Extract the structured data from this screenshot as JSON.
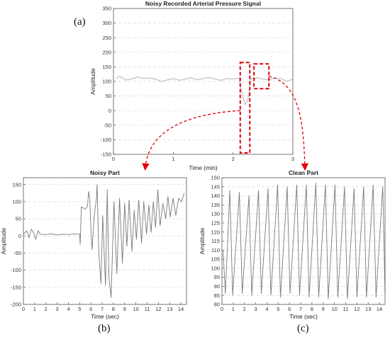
{
  "panel_labels": [
    "(a)",
    "(b)",
    "(c)"
  ],
  "chart_data": [
    {
      "type": "line",
      "title": "Noisy Recorded Arterial Pressure Signal",
      "xlabel": "Time (min)",
      "ylabel": "Amplitude",
      "xlim": [
        0,
        3
      ],
      "ylim": [
        -150,
        350
      ],
      "xticks": [
        0,
        1,
        2,
        3
      ],
      "yticks": [
        -150,
        -100,
        -50,
        0,
        50,
        100,
        150,
        200,
        250,
        300,
        350
      ],
      "grid": true,
      "color": "#c8c8c8",
      "series": [
        {
          "x": [
            0.05,
            0.1,
            0.15,
            0.2,
            0.3,
            0.4,
            0.5,
            0.6,
            0.7,
            0.8,
            0.9,
            1.0,
            1.1,
            1.2,
            1.3,
            1.4,
            1.5,
            1.6,
            1.7,
            1.8,
            1.9,
            2.0,
            2.1,
            2.15,
            2.2,
            2.25,
            2.3,
            2.4,
            2.5,
            2.6,
            2.7,
            2.8,
            2.9,
            3.0
          ],
          "values": [
            110,
            118,
            112,
            105,
            108,
            115,
            110,
            112,
            108,
            100,
            105,
            110,
            104,
            108,
            112,
            106,
            110,
            114,
            108,
            104,
            110,
            108,
            112,
            60,
            20,
            40,
            110,
            112,
            108,
            105,
            112,
            110,
            100,
            108
          ]
        }
      ],
      "highlight_boxes": [
        {
          "x": [
            2.12,
            2.28
          ],
          "y": [
            -145,
            165
          ],
          "label": "Noisy Part"
        },
        {
          "x": [
            2.35,
            2.6
          ],
          "y": [
            75,
            160
          ],
          "label": "Clean Part"
        }
      ]
    },
    {
      "type": "line",
      "title": "Noisy Part",
      "xlabel": "Time (sec)",
      "ylabel": "Amplitude",
      "xlim": [
        0,
        14.5
      ],
      "ylim": [
        -200,
        170
      ],
      "xticks": [
        0,
        1,
        2,
        3,
        4,
        5,
        6,
        7,
        8,
        9,
        10,
        11,
        12,
        13,
        14
      ],
      "yticks": [
        -200,
        -150,
        -100,
        -50,
        0,
        50,
        100,
        150
      ],
      "grid": true,
      "color": "#7a7a7a",
      "series": [
        {
          "x": [
            0,
            0.3,
            0.5,
            0.7,
            0.9,
            1.1,
            1.3,
            1.5,
            2,
            2.5,
            3,
            3.5,
            4,
            4.5,
            5,
            5.05,
            5.15,
            5.3,
            5.5,
            5.7,
            5.8,
            5.9,
            6.0,
            6.1,
            6.3,
            6.5,
            6.55,
            6.7,
            6.9,
            7.05,
            7.3,
            7.45,
            7.6,
            7.8,
            8.05,
            8.3,
            8.55,
            8.8,
            9.0,
            9.2,
            9.4,
            9.65,
            9.85,
            10.05,
            10.25,
            10.5,
            10.7,
            10.95,
            11.15,
            11.35,
            11.55,
            11.75,
            11.95,
            12.15,
            12.4,
            12.65,
            12.85,
            13.05,
            13.3,
            13.55,
            13.8,
            14.05,
            14.3
          ],
          "values": [
            5,
            15,
            -5,
            20,
            10,
            -10,
            15,
            5,
            4,
            6,
            3,
            5,
            4,
            6,
            5,
            -25,
            85,
            82,
            78,
            88,
            130,
            110,
            20,
            -40,
            60,
            110,
            150,
            -50,
            -140,
            60,
            -145,
            135,
            -120,
            -180,
            100,
            -110,
            110,
            -80,
            95,
            -30,
            105,
            -45,
            75,
            -10,
            105,
            -20,
            100,
            5,
            90,
            10,
            100,
            25,
            135,
            30,
            95,
            50,
            115,
            55,
            110,
            60,
            110,
            100,
            125
          ]
        }
      ]
    },
    {
      "type": "line",
      "title": "Clean Part",
      "xlabel": "Time (sec)",
      "ylabel": "Amplitude",
      "xlim": [
        0,
        14.5
      ],
      "ylim": [
        80,
        150
      ],
      "xticks": [
        0,
        1,
        2,
        3,
        4,
        5,
        6,
        7,
        8,
        9,
        10,
        11,
        12,
        13,
        14
      ],
      "yticks": [
        80,
        85,
        90,
        95,
        100,
        105,
        110,
        115,
        120,
        125,
        130,
        135,
        140,
        145,
        150
      ],
      "grid": true,
      "color": "#7a7a7a",
      "series": [
        {
          "x": [
            0.1,
            0.3,
            0.7,
            0.95,
            1.55,
            1.8,
            2.4,
            2.65,
            3.25,
            3.5,
            4.1,
            4.35,
            4.95,
            5.2,
            5.8,
            6.05,
            6.65,
            6.9,
            7.5,
            7.75,
            8.35,
            8.6,
            9.2,
            9.45,
            10.05,
            10.3,
            10.9,
            11.15,
            11.75,
            12.0,
            12.6,
            12.85,
            13.45,
            13.7,
            14.3,
            14.5
          ],
          "values": [
            110,
            86,
            143,
            85,
            142,
            86,
            140,
            85,
            143,
            86,
            144,
            85,
            146,
            84,
            145,
            86,
            146,
            85,
            146,
            84,
            147,
            84,
            146,
            83,
            146,
            84,
            145,
            83,
            144,
            84,
            145,
            84,
            146,
            84,
            145,
            86
          ]
        }
      ]
    }
  ]
}
